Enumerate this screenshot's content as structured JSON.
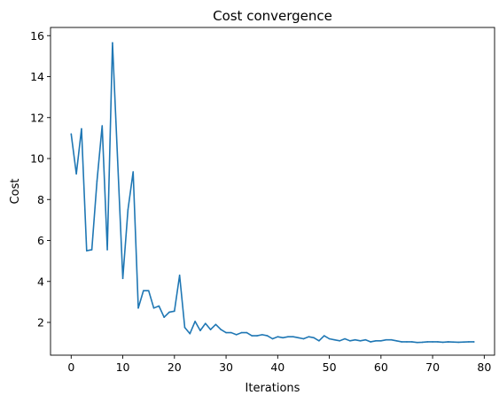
{
  "chart_data": {
    "type": "line",
    "title": "Cost convergence",
    "xlabel": "Iterations",
    "ylabel": "Cost",
    "xlim": [
      -4,
      82
    ],
    "ylim": [
      0.4,
      16.4
    ],
    "xticks": [
      0,
      10,
      20,
      30,
      40,
      50,
      60,
      70,
      80
    ],
    "yticks": [
      2,
      4,
      6,
      8,
      10,
      12,
      14,
      16
    ],
    "grid": false,
    "legend": "none",
    "series": [
      {
        "color": "#1f77b4",
        "x": [
          0,
          1,
          2,
          3,
          4,
          5,
          6,
          7,
          8,
          9,
          10,
          11,
          12,
          13,
          14,
          15,
          16,
          17,
          18,
          19,
          20,
          21,
          22,
          23,
          24,
          25,
          26,
          27,
          28,
          29,
          30,
          31,
          32,
          33,
          34,
          35,
          36,
          37,
          38,
          39,
          40,
          41,
          42,
          43,
          44,
          45,
          46,
          47,
          48,
          49,
          50,
          51,
          52,
          53,
          54,
          55,
          56,
          57,
          58,
          59,
          60,
          61,
          62,
          63,
          64,
          65,
          66,
          67,
          68,
          69,
          70,
          71,
          72,
          73,
          74,
          75,
          76,
          77,
          78
        ],
        "y": [
          11.2,
          9.25,
          11.45,
          5.5,
          5.55,
          8.9,
          11.6,
          5.55,
          15.65,
          9.9,
          4.15,
          7.5,
          9.35,
          2.7,
          3.55,
          3.55,
          2.7,
          2.8,
          2.25,
          2.5,
          2.55,
          4.3,
          1.75,
          1.45,
          2.05,
          1.6,
          1.95,
          1.65,
          1.9,
          1.65,
          1.5,
          1.5,
          1.4,
          1.5,
          1.5,
          1.35,
          1.35,
          1.4,
          1.35,
          1.2,
          1.3,
          1.25,
          1.3,
          1.3,
          1.25,
          1.2,
          1.3,
          1.25,
          1.1,
          1.35,
          1.2,
          1.15,
          1.1,
          1.2,
          1.1,
          1.15,
          1.1,
          1.15,
          1.05,
          1.1,
          1.1,
          1.15,
          1.15,
          1.1,
          1.05,
          1.05,
          1.05,
          1.02,
          1.03,
          1.05,
          1.05,
          1.05,
          1.03,
          1.05,
          1.04,
          1.03,
          1.04,
          1.05,
          1.05
        ]
      }
    ]
  }
}
